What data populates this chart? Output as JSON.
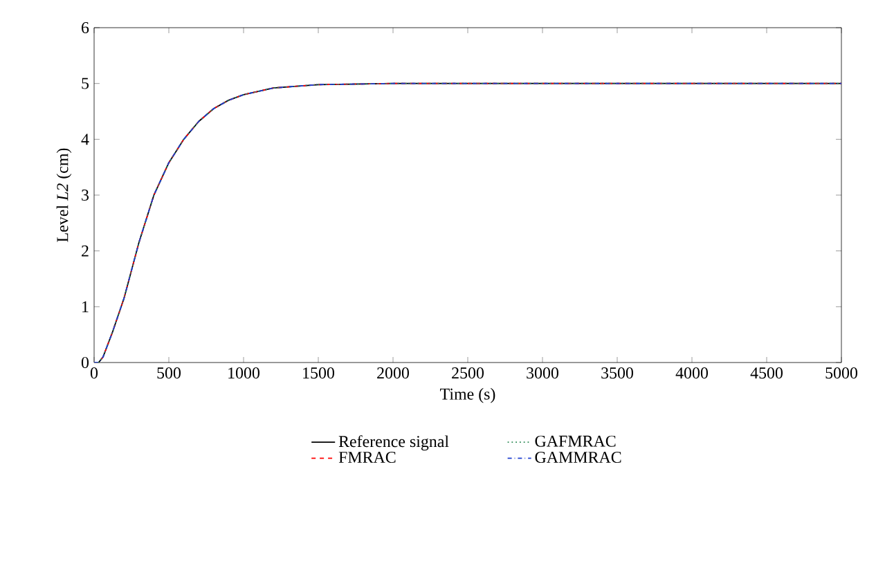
{
  "chart_data": {
    "type": "line",
    "xlabel": "Time (s)",
    "ylabel": "Level *L2* (cm)",
    "xlim": [
      0,
      5000
    ],
    "ylim": [
      0,
      6
    ],
    "xticks": [
      0,
      500,
      1000,
      1500,
      2000,
      2500,
      3000,
      3500,
      4000,
      4500,
      5000
    ],
    "yticks": [
      0,
      1,
      2,
      3,
      4,
      5,
      6
    ],
    "x": [
      0,
      30,
      60,
      125,
      200,
      300,
      400,
      500,
      600,
      700,
      800,
      900,
      1000,
      1200,
      1500,
      2000,
      3000,
      4000,
      5000
    ],
    "grid": false,
    "legend": "bottom",
    "series": [
      {
        "name": "Reference signal",
        "color": "#000000",
        "line_style": "solid",
        "values": [
          0,
          0,
          0.1,
          0.56,
          1.15,
          2.15,
          3.0,
          3.58,
          4.0,
          4.32,
          4.55,
          4.7,
          4.8,
          4.92,
          4.98,
          5,
          5,
          5,
          5
        ]
      },
      {
        "name": "FMRAC",
        "color": "#ff0000",
        "line_style": "dashed",
        "values": [
          0,
          0,
          0.1,
          0.56,
          1.15,
          2.15,
          3.0,
          3.58,
          4.0,
          4.32,
          4.55,
          4.7,
          4.8,
          4.92,
          4.98,
          5,
          5,
          5,
          5
        ]
      },
      {
        "name": "GAFMRAC",
        "color": "#2e8b57",
        "line_style": "dotted",
        "values": [
          0,
          0,
          0.1,
          0.56,
          1.15,
          2.15,
          3.0,
          3.58,
          4.0,
          4.32,
          4.55,
          4.7,
          4.8,
          4.92,
          4.98,
          5,
          5,
          5,
          5
        ]
      },
      {
        "name": "GAMMRAC",
        "color": "#1f3fd0",
        "line_style": "dashdotted",
        "values": [
          0,
          0,
          0.1,
          0.56,
          1.15,
          2.15,
          3.0,
          3.58,
          4.0,
          4.32,
          4.55,
          4.7,
          4.8,
          4.92,
          4.98,
          5,
          5,
          5,
          5
        ]
      }
    ]
  }
}
